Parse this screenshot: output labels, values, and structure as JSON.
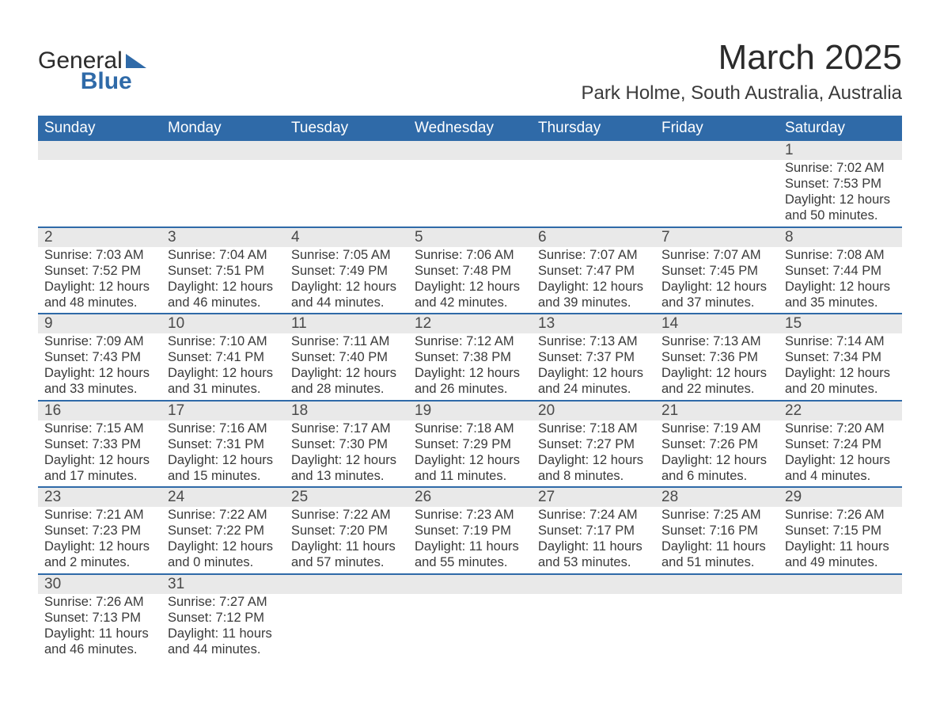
{
  "logo": {
    "line1": "General",
    "line2": "Blue",
    "brand_color": "#2f6aa8"
  },
  "title": {
    "month": "March 2025",
    "location": "Park Holme, South Australia, Australia"
  },
  "colors": {
    "header_bg": "#2f6aa8",
    "header_fg": "#ffffff",
    "daynum_bg": "#e9e9e9",
    "text": "#3a3a3a",
    "rule": "#2f6aa8",
    "page_bg": "#ffffff"
  },
  "typography": {
    "month_title_pt": 33,
    "location_pt": 18,
    "header_pt": 14,
    "daynum_pt": 14,
    "body_pt": 12
  },
  "day_labels": [
    "Sunday",
    "Monday",
    "Tuesday",
    "Wednesday",
    "Thursday",
    "Friday",
    "Saturday"
  ],
  "weeks": [
    [
      null,
      null,
      null,
      null,
      null,
      null,
      {
        "n": "1",
        "sunrise": "Sunrise: 7:02 AM",
        "sunset": "Sunset: 7:53 PM",
        "dl1": "Daylight: 12 hours",
        "dl2": "and 50 minutes."
      }
    ],
    [
      {
        "n": "2",
        "sunrise": "Sunrise: 7:03 AM",
        "sunset": "Sunset: 7:52 PM",
        "dl1": "Daylight: 12 hours",
        "dl2": "and 48 minutes."
      },
      {
        "n": "3",
        "sunrise": "Sunrise: 7:04 AM",
        "sunset": "Sunset: 7:51 PM",
        "dl1": "Daylight: 12 hours",
        "dl2": "and 46 minutes."
      },
      {
        "n": "4",
        "sunrise": "Sunrise: 7:05 AM",
        "sunset": "Sunset: 7:49 PM",
        "dl1": "Daylight: 12 hours",
        "dl2": "and 44 minutes."
      },
      {
        "n": "5",
        "sunrise": "Sunrise: 7:06 AM",
        "sunset": "Sunset: 7:48 PM",
        "dl1": "Daylight: 12 hours",
        "dl2": "and 42 minutes."
      },
      {
        "n": "6",
        "sunrise": "Sunrise: 7:07 AM",
        "sunset": "Sunset: 7:47 PM",
        "dl1": "Daylight: 12 hours",
        "dl2": "and 39 minutes."
      },
      {
        "n": "7",
        "sunrise": "Sunrise: 7:07 AM",
        "sunset": "Sunset: 7:45 PM",
        "dl1": "Daylight: 12 hours",
        "dl2": "and 37 minutes."
      },
      {
        "n": "8",
        "sunrise": "Sunrise: 7:08 AM",
        "sunset": "Sunset: 7:44 PM",
        "dl1": "Daylight: 12 hours",
        "dl2": "and 35 minutes."
      }
    ],
    [
      {
        "n": "9",
        "sunrise": "Sunrise: 7:09 AM",
        "sunset": "Sunset: 7:43 PM",
        "dl1": "Daylight: 12 hours",
        "dl2": "and 33 minutes."
      },
      {
        "n": "10",
        "sunrise": "Sunrise: 7:10 AM",
        "sunset": "Sunset: 7:41 PM",
        "dl1": "Daylight: 12 hours",
        "dl2": "and 31 minutes."
      },
      {
        "n": "11",
        "sunrise": "Sunrise: 7:11 AM",
        "sunset": "Sunset: 7:40 PM",
        "dl1": "Daylight: 12 hours",
        "dl2": "and 28 minutes."
      },
      {
        "n": "12",
        "sunrise": "Sunrise: 7:12 AM",
        "sunset": "Sunset: 7:38 PM",
        "dl1": "Daylight: 12 hours",
        "dl2": "and 26 minutes."
      },
      {
        "n": "13",
        "sunrise": "Sunrise: 7:13 AM",
        "sunset": "Sunset: 7:37 PM",
        "dl1": "Daylight: 12 hours",
        "dl2": "and 24 minutes."
      },
      {
        "n": "14",
        "sunrise": "Sunrise: 7:13 AM",
        "sunset": "Sunset: 7:36 PM",
        "dl1": "Daylight: 12 hours",
        "dl2": "and 22 minutes."
      },
      {
        "n": "15",
        "sunrise": "Sunrise: 7:14 AM",
        "sunset": "Sunset: 7:34 PM",
        "dl1": "Daylight: 12 hours",
        "dl2": "and 20 minutes."
      }
    ],
    [
      {
        "n": "16",
        "sunrise": "Sunrise: 7:15 AM",
        "sunset": "Sunset: 7:33 PM",
        "dl1": "Daylight: 12 hours",
        "dl2": "and 17 minutes."
      },
      {
        "n": "17",
        "sunrise": "Sunrise: 7:16 AM",
        "sunset": "Sunset: 7:31 PM",
        "dl1": "Daylight: 12 hours",
        "dl2": "and 15 minutes."
      },
      {
        "n": "18",
        "sunrise": "Sunrise: 7:17 AM",
        "sunset": "Sunset: 7:30 PM",
        "dl1": "Daylight: 12 hours",
        "dl2": "and 13 minutes."
      },
      {
        "n": "19",
        "sunrise": "Sunrise: 7:18 AM",
        "sunset": "Sunset: 7:29 PM",
        "dl1": "Daylight: 12 hours",
        "dl2": "and 11 minutes."
      },
      {
        "n": "20",
        "sunrise": "Sunrise: 7:18 AM",
        "sunset": "Sunset: 7:27 PM",
        "dl1": "Daylight: 12 hours",
        "dl2": "and 8 minutes."
      },
      {
        "n": "21",
        "sunrise": "Sunrise: 7:19 AM",
        "sunset": "Sunset: 7:26 PM",
        "dl1": "Daylight: 12 hours",
        "dl2": "and 6 minutes."
      },
      {
        "n": "22",
        "sunrise": "Sunrise: 7:20 AM",
        "sunset": "Sunset: 7:24 PM",
        "dl1": "Daylight: 12 hours",
        "dl2": "and 4 minutes."
      }
    ],
    [
      {
        "n": "23",
        "sunrise": "Sunrise: 7:21 AM",
        "sunset": "Sunset: 7:23 PM",
        "dl1": "Daylight: 12 hours",
        "dl2": "and 2 minutes."
      },
      {
        "n": "24",
        "sunrise": "Sunrise: 7:22 AM",
        "sunset": "Sunset: 7:22 PM",
        "dl1": "Daylight: 12 hours",
        "dl2": "and 0 minutes."
      },
      {
        "n": "25",
        "sunrise": "Sunrise: 7:22 AM",
        "sunset": "Sunset: 7:20 PM",
        "dl1": "Daylight: 11 hours",
        "dl2": "and 57 minutes."
      },
      {
        "n": "26",
        "sunrise": "Sunrise: 7:23 AM",
        "sunset": "Sunset: 7:19 PM",
        "dl1": "Daylight: 11 hours",
        "dl2": "and 55 minutes."
      },
      {
        "n": "27",
        "sunrise": "Sunrise: 7:24 AM",
        "sunset": "Sunset: 7:17 PM",
        "dl1": "Daylight: 11 hours",
        "dl2": "and 53 minutes."
      },
      {
        "n": "28",
        "sunrise": "Sunrise: 7:25 AM",
        "sunset": "Sunset: 7:16 PM",
        "dl1": "Daylight: 11 hours",
        "dl2": "and 51 minutes."
      },
      {
        "n": "29",
        "sunrise": "Sunrise: 7:26 AM",
        "sunset": "Sunset: 7:15 PM",
        "dl1": "Daylight: 11 hours",
        "dl2": "and 49 minutes."
      }
    ],
    [
      {
        "n": "30",
        "sunrise": "Sunrise: 7:26 AM",
        "sunset": "Sunset: 7:13 PM",
        "dl1": "Daylight: 11 hours",
        "dl2": "and 46 minutes."
      },
      {
        "n": "31",
        "sunrise": "Sunrise: 7:27 AM",
        "sunset": "Sunset: 7:12 PM",
        "dl1": "Daylight: 11 hours",
        "dl2": "and 44 minutes."
      },
      null,
      null,
      null,
      null,
      null
    ]
  ]
}
